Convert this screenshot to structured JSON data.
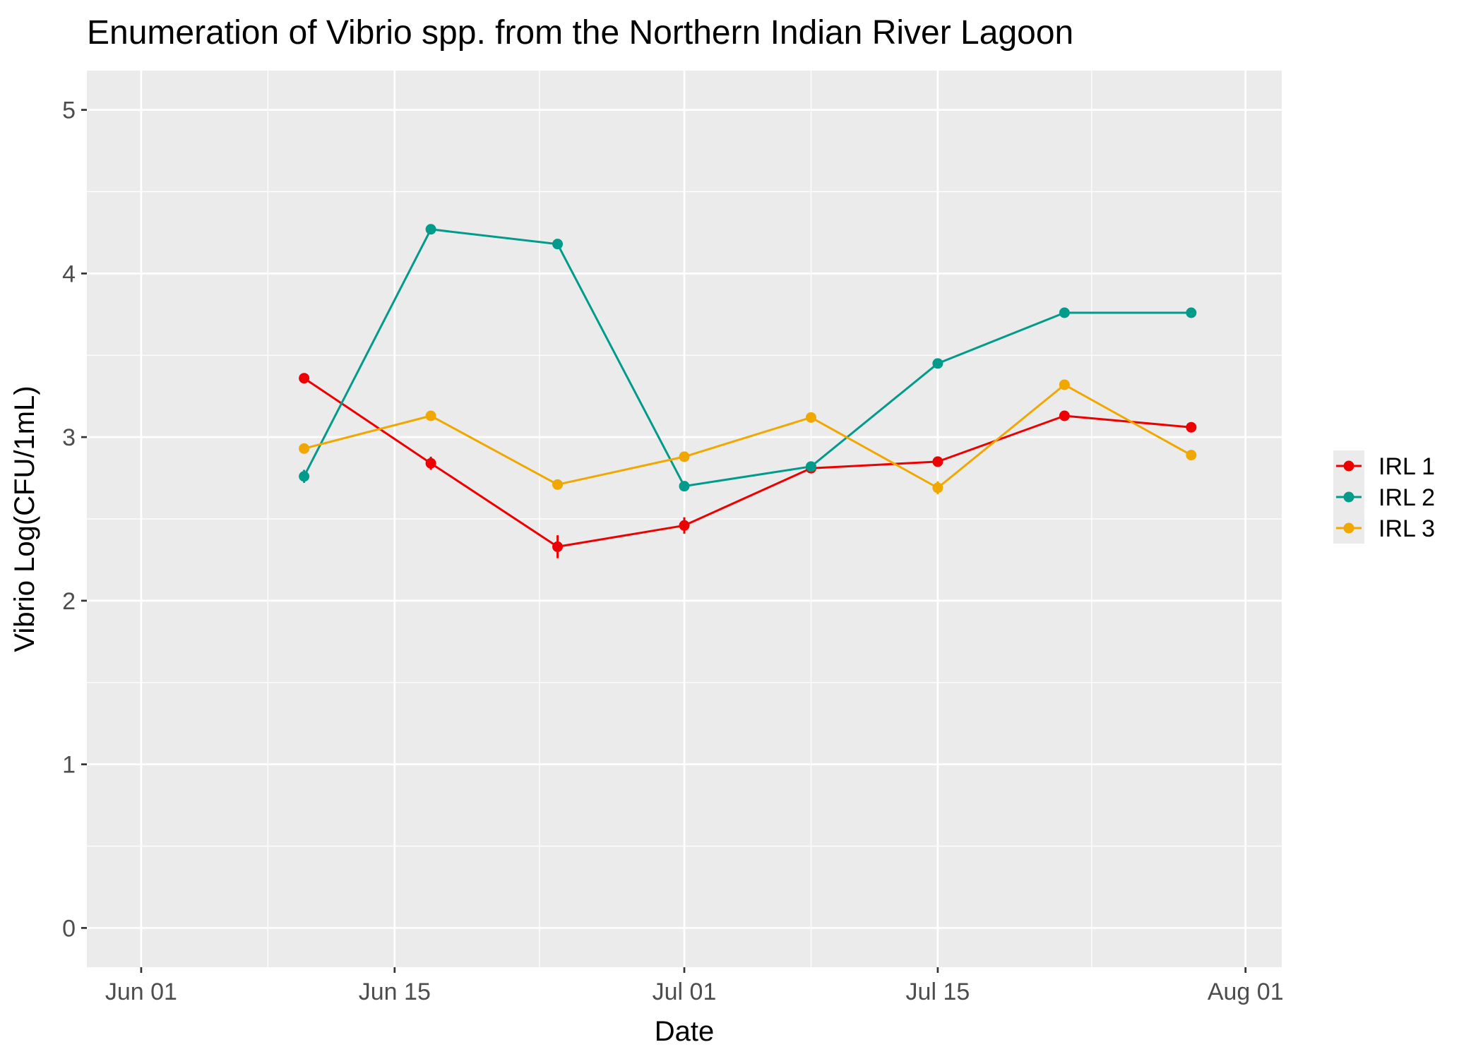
{
  "chart_data": {
    "type": "line",
    "title": "Enumeration of Vibrio spp. from the Northern Indian River Lagoon",
    "xlabel": "Date",
    "ylabel": "Vibrio Log(CFU/1mL)",
    "x_unit": "days since Jun 01",
    "xlim": [
      -3,
      63
    ],
    "ylim": [
      -0.24,
      5.24
    ],
    "x_ticks": [
      {
        "label": "Jun 01",
        "value": 0
      },
      {
        "label": "Jun 15",
        "value": 14
      },
      {
        "label": "Jul 01",
        "value": 30
      },
      {
        "label": "Jul 15",
        "value": 44
      },
      {
        "label": "Aug 01",
        "value": 61
      }
    ],
    "x_minor_ticks": [
      7,
      22,
      37,
      52.5
    ],
    "y_ticks": [
      0,
      1,
      2,
      3,
      4,
      5
    ],
    "grid": true,
    "legend_position": "right",
    "x": [
      9,
      16,
      23,
      30,
      37,
      44,
      51,
      58
    ],
    "series": [
      {
        "name": "IRL 1",
        "color": "#ee0000",
        "values": [
          3.36,
          2.84,
          2.33,
          2.46,
          2.81,
          2.85,
          3.13,
          3.06
        ],
        "errors": [
          0.02,
          0.04,
          0.07,
          0.05,
          0.03,
          0.03,
          0.02,
          0.02
        ]
      },
      {
        "name": "IRL 2",
        "color": "#009b8a",
        "values": [
          2.76,
          4.27,
          4.18,
          2.7,
          2.82,
          3.45,
          3.76,
          3.76
        ],
        "errors": [
          0.04,
          0.02,
          0.02,
          0.03,
          0.03,
          0.02,
          0.02,
          0.02
        ]
      },
      {
        "name": "IRL 3",
        "color": "#f0a800",
        "values": [
          2.93,
          3.13,
          2.71,
          2.88,
          3.12,
          2.69,
          3.32,
          2.89
        ],
        "errors": [
          0.03,
          0.02,
          0.03,
          0.02,
          0.02,
          0.04,
          0.02,
          0.03
        ]
      }
    ]
  }
}
